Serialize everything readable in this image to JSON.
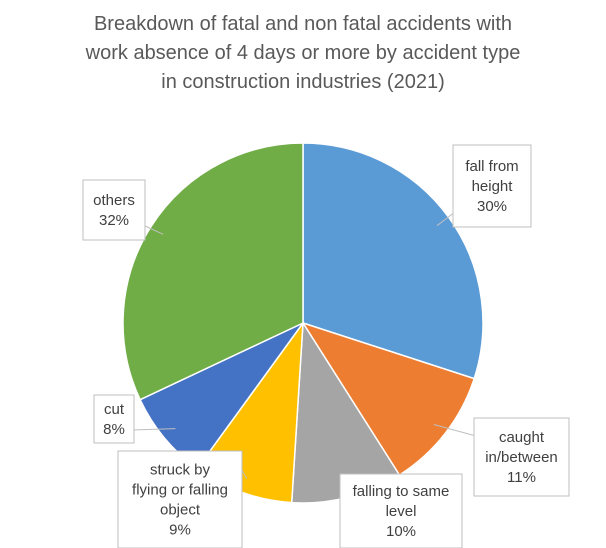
{
  "chart_data": {
    "type": "pie",
    "title_lines": [
      "Breakdown of fatal and non fatal accidents with",
      "work absence of 4 days or more by accident type",
      "in construction industries (2021)"
    ],
    "slices": [
      {
        "label_lines": [
          "fall from",
          "height"
        ],
        "value": 30,
        "value_label": "30%",
        "color": "#5b9bd5"
      },
      {
        "label_lines": [
          "caught",
          "in/between"
        ],
        "value": 11,
        "value_label": "11%",
        "color": "#ed7d31"
      },
      {
        "label_lines": [
          "falling to same",
          "level"
        ],
        "value": 10,
        "value_label": "10%",
        "color": "#a5a5a5"
      },
      {
        "label_lines": [
          "struck by",
          "flying or falling",
          "object"
        ],
        "value": 9,
        "value_label": "9%",
        "color": "#ffc000"
      },
      {
        "label_lines": [
          "cut"
        ],
        "value": 8,
        "value_label": "8%",
        "color": "#4472c4"
      },
      {
        "label_lines": [
          "others"
        ],
        "value": 32,
        "value_label": "32%",
        "color": "#70ad47"
      }
    ],
    "legend": "none",
    "data_labels": "callouts"
  }
}
